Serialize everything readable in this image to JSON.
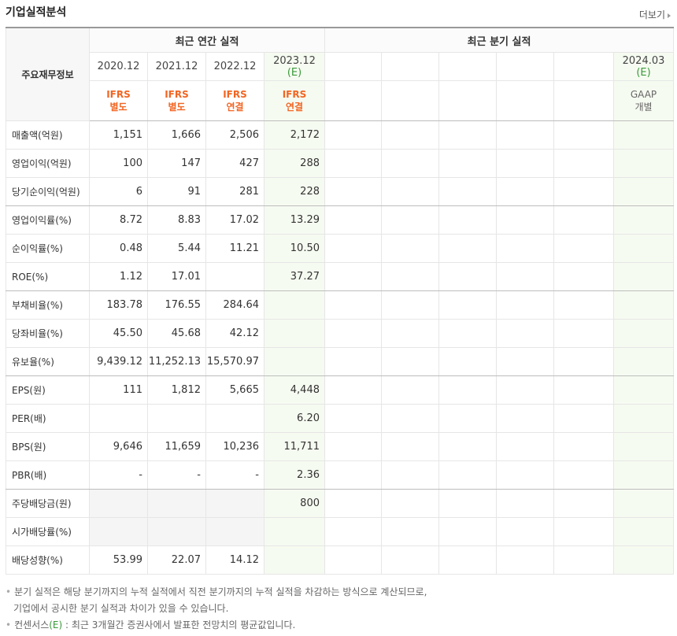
{
  "header": {
    "title": "기업실적분석",
    "more": "더보기"
  },
  "table": {
    "corner": "주요재무정보",
    "annual_group": "최근 연간 실적",
    "quarter_group": "최근 분기 실적",
    "annual_periods": [
      {
        "period": "2020.12",
        "standard": "IFRS",
        "basis": "별도"
      },
      {
        "period": "2021.12",
        "standard": "IFRS",
        "basis": "별도"
      },
      {
        "period": "2022.12",
        "standard": "IFRS",
        "basis": "연결"
      },
      {
        "period": "2023.12",
        "estimate": "(E)",
        "standard": "IFRS",
        "basis": "연결"
      }
    ],
    "quarter_periods": [
      {
        "period": "2024.03",
        "estimate": "(E)",
        "standard": "GAAP",
        "basis": "개별"
      }
    ],
    "rows": [
      {
        "label": "매출액(억원)",
        "values": [
          "1,151",
          "1,666",
          "2,506",
          "2,172"
        ]
      },
      {
        "label": "영업이익(억원)",
        "values": [
          "100",
          "147",
          "427",
          "288"
        ]
      },
      {
        "label": "당기순이익(억원)",
        "values": [
          "6",
          "91",
          "281",
          "228"
        ]
      },
      {
        "label": "영업이익률(%)",
        "values": [
          "8.72",
          "8.83",
          "17.02",
          "13.29"
        ]
      },
      {
        "label": "순이익률(%)",
        "values": [
          "0.48",
          "5.44",
          "11.21",
          "10.50"
        ]
      },
      {
        "label": "ROE(%)",
        "values": [
          "1.12",
          "17.01",
          null,
          "37.27"
        ]
      },
      {
        "label": "부채비율(%)",
        "values": [
          "183.78",
          "176.55",
          "284.64",
          null
        ]
      },
      {
        "label": "당좌비율(%)",
        "values": [
          "45.50",
          "45.68",
          "42.12",
          null
        ]
      },
      {
        "label": "유보율(%)",
        "values": [
          "9,439.12",
          "11,252.13",
          "15,570.97",
          null
        ]
      },
      {
        "label": "EPS(원)",
        "values": [
          "111",
          "1,812",
          "5,665",
          "4,448"
        ]
      },
      {
        "label": "PER(배)",
        "values": [
          null,
          null,
          null,
          "6.20"
        ]
      },
      {
        "label": "BPS(원)",
        "values": [
          "9,646",
          "11,659",
          "10,236",
          "11,711"
        ]
      },
      {
        "label": "PBR(배)",
        "values": [
          "-",
          "-",
          "-",
          "2.36"
        ]
      },
      {
        "label": "주당배당금(원)",
        "values": [
          null,
          null,
          null,
          "800"
        ]
      },
      {
        "label": "시가배당률(%)",
        "values": [
          null,
          null,
          null,
          null
        ]
      },
      {
        "label": "배당성향(%)",
        "values": [
          "53.99",
          "22.07",
          "14.12",
          null
        ]
      }
    ]
  },
  "footnotes": [
    {
      "lines": [
        "분기 실적은 해당 분기까지의 누적 실적에서 직전 분기까지의 누적 실적을 차감하는 방식으로 계산되므로,",
        "기업에서 공시한 분기 실적과 차이가 있을 수 있습니다."
      ]
    },
    {
      "term": "컨센서스",
      "estimate": "(E)",
      "text": " : 최근 3개월간 증권사에서 발표한 전망치의 평균값입니다."
    }
  ]
}
